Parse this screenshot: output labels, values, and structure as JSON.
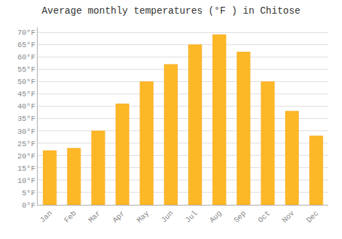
{
  "chart_data": {
    "type": "bar",
    "title": "Average monthly temperatures (°F ) in Chitose",
    "categories": [
      "Jan",
      "Feb",
      "Mar",
      "Apr",
      "May",
      "Jun",
      "Jul",
      "Aug",
      "Sep",
      "Oct",
      "Nov",
      "Dec"
    ],
    "values": [
      22,
      23,
      30,
      41,
      50,
      57,
      65,
      69,
      62,
      50,
      38,
      28
    ],
    "color": "#FDB827",
    "ylim": [
      0,
      72
    ],
    "yticks": [
      {
        "value": 0,
        "label": "0°F"
      },
      {
        "value": 5,
        "label": "5°F"
      },
      {
        "value": 10,
        "label": "10°F"
      },
      {
        "value": 15,
        "label": "15°F"
      },
      {
        "value": 20,
        "label": "20°F"
      },
      {
        "value": 25,
        "label": "25°F"
      },
      {
        "value": 30,
        "label": "30°F"
      },
      {
        "value": 35,
        "label": "35°F"
      },
      {
        "value": 40,
        "label": "40°F"
      },
      {
        "value": 45,
        "label": "45°F"
      },
      {
        "value": 50,
        "label": "50°F"
      },
      {
        "value": 55,
        "label": "55°F"
      },
      {
        "value": 60,
        "label": "60°F"
      },
      {
        "value": 65,
        "label": "65°F"
      },
      {
        "value": 70,
        "label": "70°F"
      }
    ],
    "grid": true
  }
}
